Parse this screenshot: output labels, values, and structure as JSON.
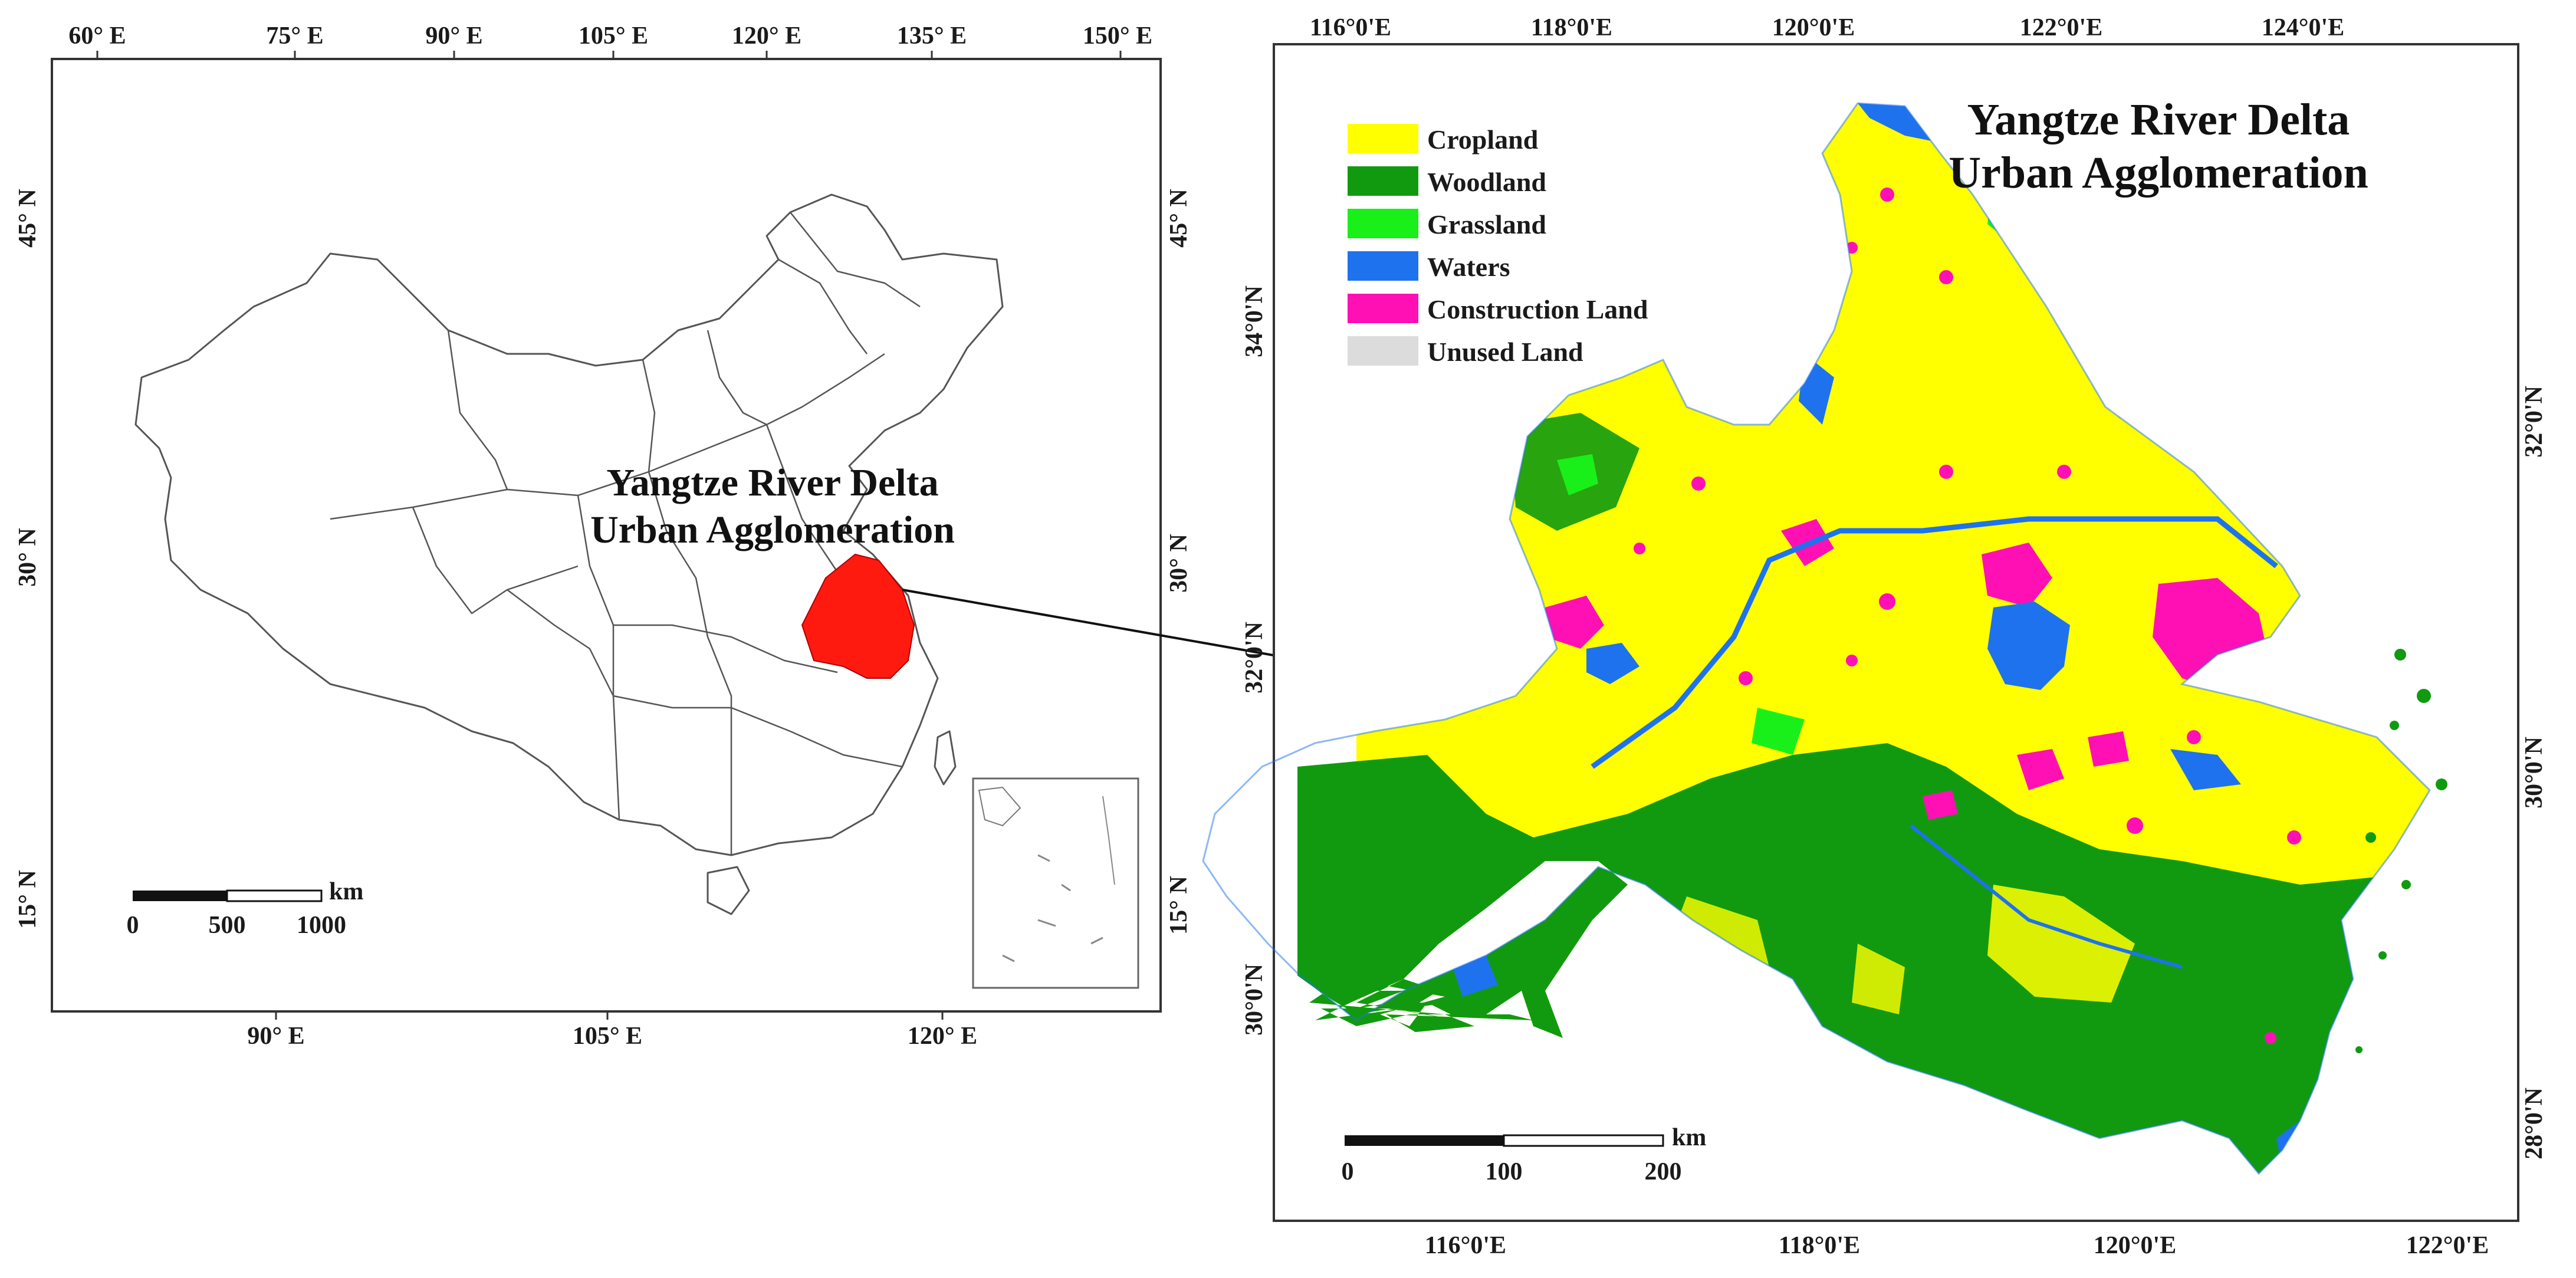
{
  "colors": {
    "cropland": "#ffff00",
    "woodland": "#119a10",
    "grassland": "#19f019",
    "waters": "#1e72ee",
    "construction": "#ff10b5",
    "unused": "#dcdcdc",
    "highlight": "#ff1a10",
    "frame": "#333333"
  },
  "left_map": {
    "top_ticks": [
      "60° E",
      "75° E",
      "90° E",
      "105° E",
      "120° E",
      "135° E",
      "150° E"
    ],
    "bottom_ticks": [
      "90° E",
      "105° E",
      "120° E"
    ],
    "left_ticks": [
      "45° N",
      "30° N",
      "15° N"
    ],
    "right_ticks": [
      "45° N",
      "30° N",
      "15° N"
    ],
    "region_label_line1": "Yangtze River Delta",
    "region_label_line2": "Urban Agglomeration",
    "scale_unit": "km",
    "scale_labels": [
      "0",
      "500",
      "1000"
    ]
  },
  "right_map": {
    "title_line1": "Yangtze River Delta",
    "title_line2": "Urban Agglomeration",
    "top_ticks": [
      "116°0'E",
      "118°0'E",
      "120°0'E",
      "122°0'E",
      "124°0'E"
    ],
    "bottom_ticks": [
      "116°0'E",
      "118°0'E",
      "120°0'E",
      "122°0'E"
    ],
    "left_ticks": [
      "34°0'N",
      "32°0'N",
      "30°0'N"
    ],
    "right_ticks": [
      "32°0'N",
      "30°0'N",
      "28°0'N"
    ],
    "legend": [
      {
        "label": "Cropland",
        "color": "#ffff00"
      },
      {
        "label": "Woodland",
        "color": "#119a10"
      },
      {
        "label": "Grassland",
        "color": "#19f019"
      },
      {
        "label": "Waters",
        "color": "#1e72ee"
      },
      {
        "label": "Construction Land",
        "color": "#ff10b5"
      },
      {
        "label": "Unused Land",
        "color": "#dcdcdc"
      }
    ],
    "scale_unit": "km",
    "scale_labels": [
      "0",
      "100",
      "200"
    ]
  }
}
